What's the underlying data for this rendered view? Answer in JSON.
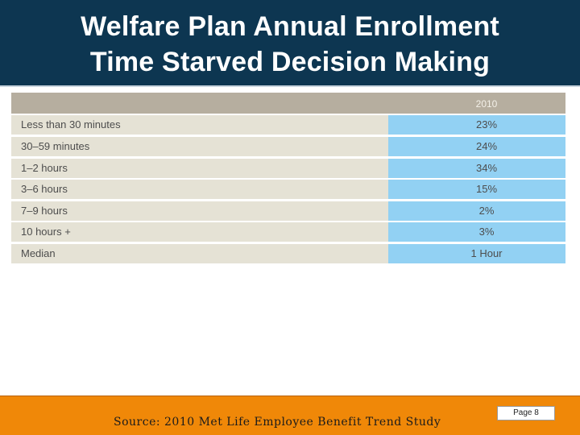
{
  "slide": {
    "title_line1": "Welfare Plan Annual Enrollment",
    "title_line2": "Time Starved Decision Making"
  },
  "table": {
    "year_header": "2010",
    "rows": [
      {
        "label": "Less than 30 minutes",
        "value": "23%"
      },
      {
        "label": "30–59 minutes",
        "value": "24%"
      },
      {
        "label": "1–2 hours",
        "value": "34%"
      },
      {
        "label": "3–6 hours",
        "value": "15%"
      },
      {
        "label": "7–9 hours",
        "value": "2%"
      },
      {
        "label": "10 hours +",
        "value": "3%"
      },
      {
        "label": "Median",
        "value": "1 Hour"
      }
    ]
  },
  "footer": {
    "source": "Source: 2010 Met Life Employee Benefit Trend Study",
    "page_label": "Page 8"
  },
  "colors": {
    "title_band": "#0d3651",
    "footer_band": "#f08808",
    "label_cell": "#e5e2d5",
    "value_cell": "#92d1f3",
    "header_row": "#b6ae9f"
  }
}
